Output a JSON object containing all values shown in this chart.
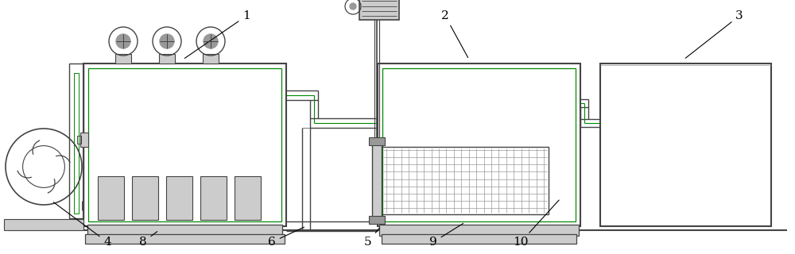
{
  "bg_color": "#ffffff",
  "lc": "#444444",
  "gc": "#008800",
  "gray": "#cccccc",
  "mgray": "#999999",
  "figsize": [
    10.0,
    3.2
  ],
  "dpi": 100
}
